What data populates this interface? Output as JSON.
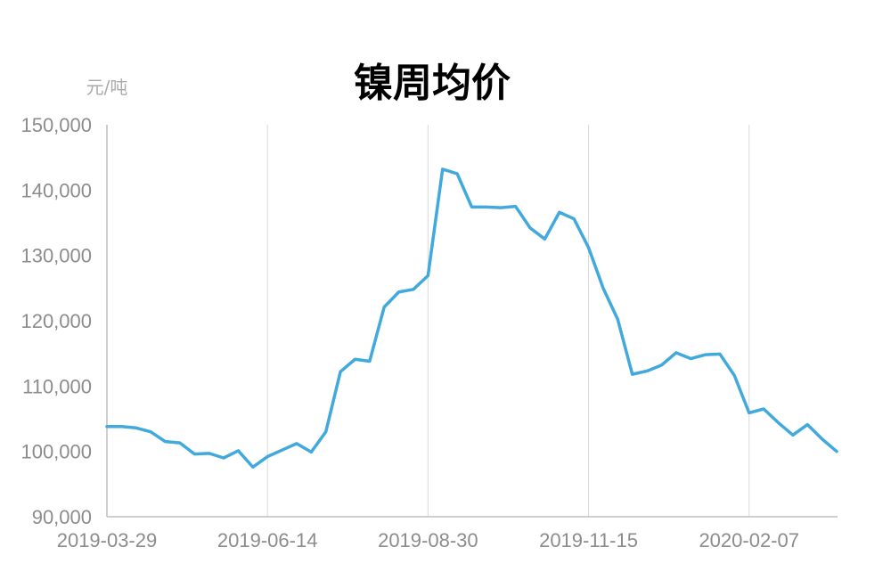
{
  "chart_data": {
    "type": "line",
    "title": "镍周均价",
    "unit_label": "元/吨",
    "ylim": [
      90000,
      150000
    ],
    "yticks": [
      90000,
      100000,
      110000,
      120000,
      130000,
      140000,
      150000
    ],
    "ytick_labels": [
      "90,000",
      "100,000",
      "110,000",
      "120,000",
      "130,000",
      "140,000",
      "150,000"
    ],
    "xtick_labels": [
      "2019-03-29",
      "2019-06-14",
      "2019-08-30",
      "2019-11-15",
      "2020-02-07"
    ],
    "xtick_indices": [
      0,
      11,
      22,
      33,
      44
    ],
    "grid": true,
    "colors": {
      "series": "#41a9dc"
    },
    "series": [
      {
        "values": [
          103800,
          103800,
          103600,
          103000,
          101500,
          101300,
          99600,
          99700,
          99000,
          100100,
          97600,
          99200,
          100200,
          101200,
          99900,
          103000,
          112200,
          114100,
          113800,
          122100,
          124400,
          124800,
          126900,
          143200,
          142500,
          137400,
          137400,
          137300,
          137500,
          134200,
          132500,
          136600,
          135600,
          131200,
          125000,
          120200,
          111800,
          112300,
          113200,
          115100,
          114200,
          114800,
          114900,
          111600,
          105900,
          106500,
          104400,
          102500,
          104100,
          101900,
          100000
        ]
      }
    ]
  }
}
